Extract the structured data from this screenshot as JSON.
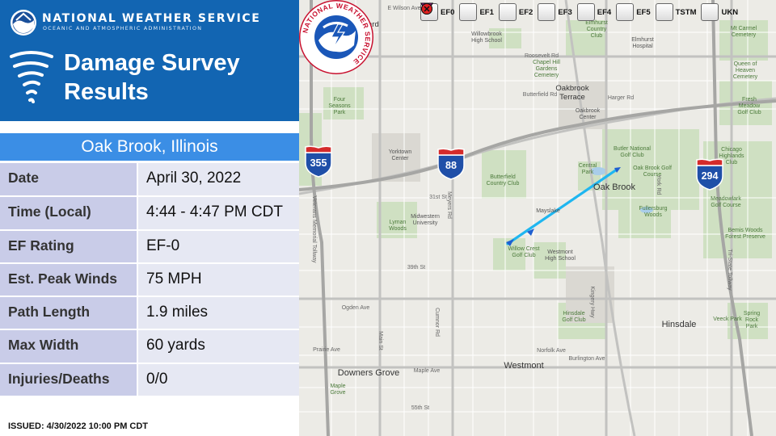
{
  "header": {
    "agency": "NATIONAL WEATHER SERVICE",
    "agency_sub": "OCEANIC AND ATMOSPHERIC ADMINISTRATION",
    "title_line1": "Damage Survey",
    "title_line2": "Results",
    "logo_icon": "noaa-logo-icon",
    "title_icon": "tornado-icon"
  },
  "location": "Oak Brook, Illinois",
  "details": [
    {
      "label": "Date",
      "value": "April 30, 2022"
    },
    {
      "label": "Time (Local)",
      "value": "4:44 - 4:47 PM CDT"
    },
    {
      "label": "EF Rating",
      "value": "EF-0"
    },
    {
      "label": "Est. Peak Winds",
      "value": "75 MPH"
    },
    {
      "label": "Path Length",
      "value": "1.9 miles"
    },
    {
      "label": "Max Width",
      "value": "60 yards"
    },
    {
      "label": "Injuries/Deaths",
      "value": "0/0"
    }
  ],
  "issued": "ISSUED:  4/30/2022 10:00 PM CDT",
  "legend": [
    {
      "label": "EF0",
      "color": "#2ee8c0",
      "icon": "triangle-down-icon"
    },
    {
      "label": "EF1",
      "color": "#28d828",
      "icon": "triangle-down-icon"
    },
    {
      "label": "EF2",
      "color": "#f5f52a",
      "icon": "triangle-down-icon"
    },
    {
      "label": "EF3",
      "color": "#e8891a",
      "icon": "triangle-down-icon"
    },
    {
      "label": "EF4",
      "color": "#e01818",
      "icon": "triangle-down-icon"
    },
    {
      "label": "EF5",
      "color": "#b0209a",
      "icon": "triangle-down-icon"
    },
    {
      "label": "TSTM",
      "color": "#2bbf2b",
      "icon": "circle-dot-icon"
    },
    {
      "label": "UKN",
      "color": "#e02020",
      "icon": "circle-x-icon"
    }
  ],
  "shields": [
    {
      "number": "355"
    },
    {
      "number": "88"
    },
    {
      "number": "294"
    }
  ],
  "map_labels": {
    "lombard": "Lombard",
    "oakbrook_terrace": "Oakbrook Terrace",
    "oak_brook": "Oak Brook",
    "westmont": "Westmont",
    "downers_grove": "Downers Grove",
    "hinsdale": "Hinsdale",
    "yorktown": "Yorktown Center",
    "oakbrook_center": "Oakbrook Center",
    "four_seasons": "Four Seasons Park",
    "butler": "Butler National Golf Club",
    "oak_brook_gc": "Oak Brook Golf Course",
    "central_park": "Central Park",
    "butterfield_cc": "Butterfield Country Club",
    "willow_crest": "Willow Crest Golf Club",
    "westmont_hs": "Westmont High School",
    "midwestern": "Midwestern University",
    "lyman": "Lyman Woods",
    "chicago_highlands": "Chicago Highlands Club",
    "meadowlark": "Meadowlark Golf Course",
    "bemis": "Bemis Woods Forest Preserve",
    "fresh_meadow": "Fresh Meadow Golf Club",
    "queen_heaven": "Queen of Heaven Cemetery",
    "mt_carmel": "Mt Carmel Cemetery",
    "elmhurst_hosp": "Elmhurst Hospital",
    "elmhurst_cc": "Elmhurst Country Club",
    "chapel_hill": "Chapel Hill Gardens Cemetery",
    "willowbrook_hs": "Willowbrook High School",
    "hinsdale_gc": "Hinsdale Golf Club",
    "fullersburg": "Fullersburg Woods",
    "maple_grove": "Maple Grove",
    "spring_rock": "Spring Rock Park",
    "veeck": "Veeck Park",
    "maysiake": "Mayslake",
    "ogden": "Ogden Ave",
    "roosevelt": "Roosevelt Rd",
    "butterfield": "Butterfield Rd",
    "harger": "Harger Rd",
    "st31": "31st St",
    "st39": "39th St",
    "norfolk": "Norfolk Ave",
    "burlington": "Burlington Ave",
    "maple_ave": "Maple Ave",
    "main_st": "Main St",
    "kingery": "Kingery Hwy",
    "tri_state": "Tri-State Tollway",
    "veterans": "Veterans Memorial Tollway",
    "prairie": "Prairie Ave",
    "cumnor": "Cumnor Rd",
    "meyers": "Meyers Rd",
    "york": "York Rd",
    "wilson": "E Wilson Ave",
    "st55": "55th St"
  },
  "seal_text": "NATIONAL WEATHER SERVICE",
  "colors": {
    "banner": "#1265b2",
    "location_bar": "#3b8ee5",
    "label_cell": "#c9cce8",
    "value_cell": "#e6e8f3",
    "track": "#1fb6f0"
  }
}
